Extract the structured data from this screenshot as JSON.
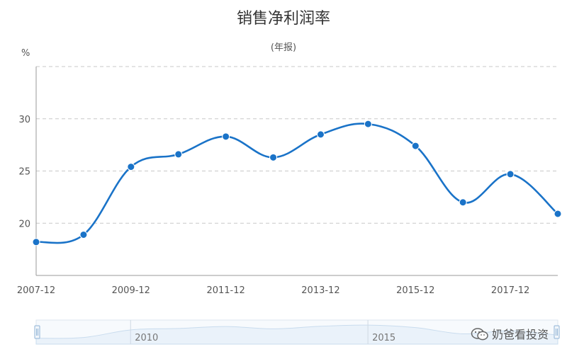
{
  "chart_data": {
    "type": "line",
    "title": "销售净利润率",
    "subtitle": "(年报)",
    "ylabel": "%",
    "xlabel": "",
    "ylim": [
      15,
      35
    ],
    "yticks": [
      20,
      25,
      30
    ],
    "grid": true,
    "categories": [
      "2007-12",
      "2008-12",
      "2009-12",
      "2010-12",
      "2011-12",
      "2012-12",
      "2013-12",
      "2014-12",
      "2015-12",
      "2016-12",
      "2017-12",
      "2018-12"
    ],
    "xtick_labels": [
      "2007-12",
      "2009-12",
      "2011-12",
      "2013-12",
      "2015-12",
      "2017-12"
    ],
    "series": [
      {
        "values": [
          18.2,
          18.9,
          25.4,
          26.6,
          28.3,
          26.3,
          28.5,
          29.5,
          27.4,
          22.0,
          24.7,
          20.9
        ]
      }
    ],
    "line_color": "#1a73c8",
    "marker_color": "#1a73c8"
  },
  "navigator": {
    "labels": [
      "2010",
      "2015"
    ]
  },
  "watermark": {
    "text": "奶爸看投资"
  }
}
